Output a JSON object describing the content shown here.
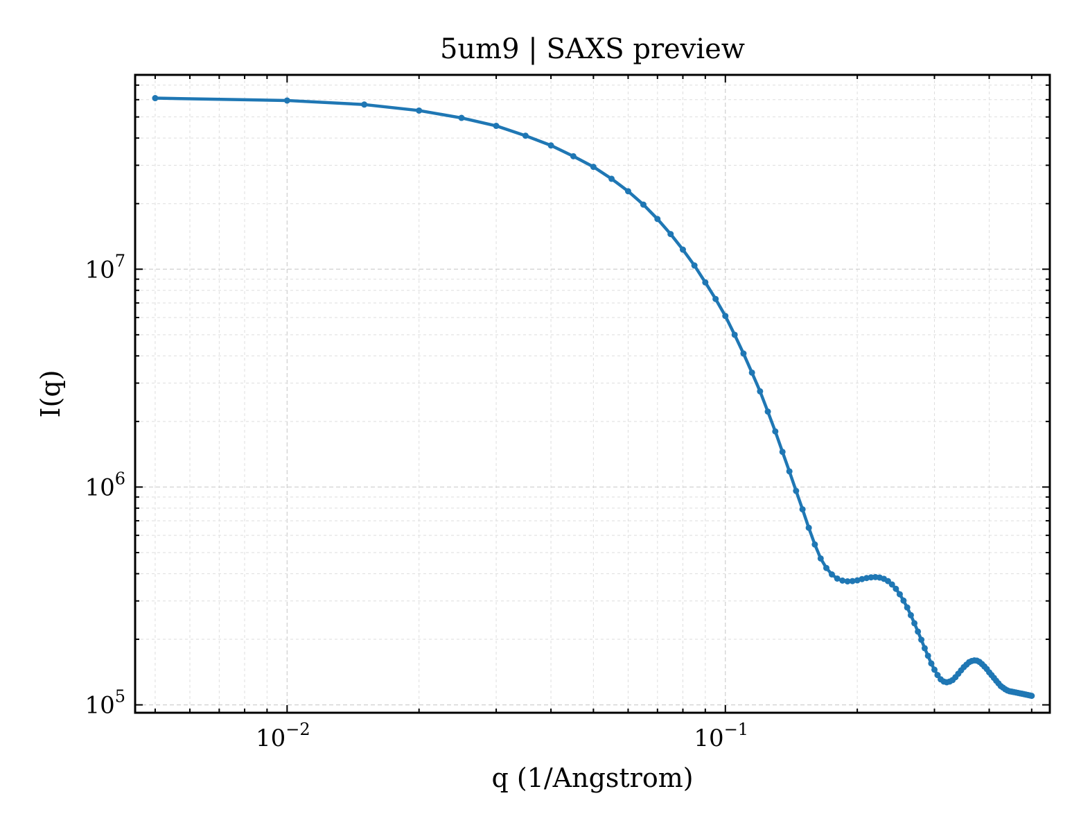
{
  "chart_data": {
    "type": "line",
    "title": "5um9 | SAXS preview",
    "xlabel": "q (1/Angstrom)",
    "ylabel": "I(q)",
    "xscale": "log",
    "yscale": "log",
    "xlim": [
      0.0045,
      0.55
    ],
    "ylim": [
      92000,
      78000000
    ],
    "grid": true,
    "x_ticks": [
      {
        "value": 0.01,
        "base": "10",
        "exp": "−2"
      },
      {
        "value": 0.1,
        "base": "10",
        "exp": "−1"
      }
    ],
    "y_ticks": [
      {
        "value": 100000,
        "base": "10",
        "exp": "5"
      },
      {
        "value": 1000000,
        "base": "10",
        "exp": "6"
      },
      {
        "value": 10000000,
        "base": "10",
        "exp": "7"
      }
    ],
    "line_color": "#1f77b4",
    "series": [
      {
        "x": [
          0.005,
          0.01,
          0.015,
          0.02,
          0.025,
          0.03,
          0.035,
          0.04,
          0.045,
          0.05,
          0.055,
          0.06,
          0.065,
          0.07,
          0.075,
          0.08,
          0.085,
          0.09,
          0.095,
          0.1,
          0.105,
          0.11,
          0.115,
          0.12,
          0.125,
          0.13,
          0.135,
          0.14,
          0.145,
          0.15,
          0.155,
          0.16,
          0.165,
          0.17,
          0.175,
          0.18,
          0.185,
          0.19,
          0.195,
          0.2,
          0.205,
          0.21,
          0.215,
          0.22,
          0.225,
          0.23,
          0.235,
          0.24,
          0.245,
          0.25,
          0.255,
          0.26,
          0.265,
          0.27,
          0.275,
          0.28,
          0.285,
          0.29,
          0.295,
          0.3,
          0.305,
          0.31,
          0.315,
          0.32,
          0.325,
          0.33,
          0.335,
          0.34,
          0.345,
          0.35,
          0.355,
          0.36,
          0.365,
          0.37,
          0.375,
          0.38,
          0.385,
          0.39,
          0.395,
          0.4,
          0.405,
          0.41,
          0.415,
          0.42,
          0.425,
          0.43,
          0.435,
          0.44,
          0.445,
          0.45,
          0.455,
          0.46,
          0.465,
          0.47,
          0.475,
          0.48,
          0.485,
          0.49,
          0.495,
          0.5
        ],
        "y": [
          61000000,
          59500000,
          57000000,
          53500000,
          49500000,
          45500000,
          41000000,
          37000000,
          33000000,
          29500000,
          26000000,
          22800000,
          19800000,
          17000000,
          14500000,
          12300000,
          10400000,
          8700000,
          7300000,
          6100000,
          5000000,
          4100000,
          3350000,
          2750000,
          2220000,
          1800000,
          1450000,
          1180000,
          960000,
          790000,
          650000,
          545000,
          470000,
          425000,
          397000,
          380000,
          372000,
          369000,
          370000,
          373000,
          378000,
          382000,
          385000,
          386000,
          384000,
          379000,
          370000,
          357000,
          341000,
          322000,
          301000,
          280000,
          258000,
          237000,
          217000,
          199000,
          182000,
          168000,
          155000,
          145000,
          137000,
          131000,
          128000,
          127000,
          128000,
          130000,
          134000,
          139000,
          144000,
          149000,
          153000,
          157000,
          159000,
          160000,
          159500,
          157500,
          154000,
          150000,
          146000,
          141000,
          137000,
          133000,
          129000,
          125500,
          122000,
          120000,
          118000,
          116500,
          115500,
          115000,
          114500,
          114000,
          113500,
          113000,
          112500,
          112000,
          111500,
          111000,
          110500,
          110000
        ]
      }
    ]
  }
}
